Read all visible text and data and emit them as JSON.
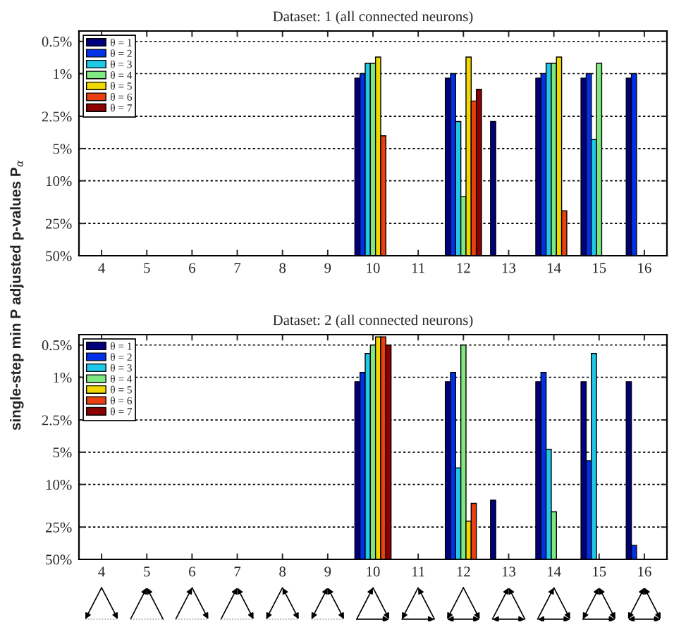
{
  "chart_data": [
    {
      "type": "bar",
      "title": "Dataset: 1 (all connected neurons)",
      "ylabel": "single-step min P adjusted p-values P$_{α}$",
      "categories": [
        "4",
        "5",
        "6",
        "7",
        "8",
        "9",
        "10",
        "11",
        "12",
        "13",
        "14",
        "15",
        "16"
      ],
      "series": [
        {
          "name": "θ = 1",
          "color": "#00007f",
          "values": [
            null,
            null,
            null,
            null,
            null,
            null,
            -48.9,
            null,
            -48.9,
            -47.2,
            -48.9,
            -48.9,
            -48.9
          ],
          "base": [
            null,
            null,
            null,
            null,
            null,
            null,
            50,
            null,
            50,
            50,
            50,
            50,
            50
          ]
        },
        {
          "name": "θ = 2",
          "color": "#0030e8",
          "values": [
            null,
            null,
            null,
            null,
            null,
            null,
            -49,
            null,
            -49,
            null,
            -49,
            -49,
            -49
          ],
          "base": [
            null,
            null,
            null,
            null,
            null,
            null,
            50,
            null,
            50,
            null,
            50,
            50,
            50
          ]
        },
        {
          "name": "θ = 3",
          "color": "#20c8e8",
          "values": [
            null,
            null,
            null,
            null,
            null,
            null,
            -49.2,
            null,
            -47.2,
            null,
            -49.2,
            -45.9,
            null
          ],
          "base": [
            null,
            null,
            null,
            null,
            null,
            null,
            50,
            null,
            50,
            null,
            50,
            50,
            null
          ]
        },
        {
          "name": "θ = 4",
          "color": "#80e880",
          "values": [
            null,
            null,
            null,
            null,
            null,
            null,
            -49.2,
            null,
            -36,
            null,
            -49.2,
            -49.2,
            null
          ],
          "base": [
            null,
            null,
            null,
            null,
            null,
            null,
            50,
            null,
            50,
            null,
            50,
            50,
            null
          ]
        },
        {
          "name": "θ = 5",
          "color": "#f0d800",
          "values": [
            null,
            null,
            null,
            null,
            null,
            null,
            -49.3,
            null,
            -49.3,
            null,
            -49.3,
            null,
            null
          ],
          "base": [
            null,
            null,
            null,
            null,
            null,
            null,
            50,
            null,
            50,
            null,
            50,
            null,
            null
          ]
        },
        {
          "name": "θ = 6",
          "color": "#e84010",
          "values": [
            null,
            null,
            null,
            null,
            null,
            null,
            -46.2,
            null,
            -48.2,
            null,
            -31,
            null,
            null
          ],
          "base": [
            null,
            null,
            null,
            null,
            null,
            null,
            50,
            null,
            50,
            null,
            50,
            null,
            null
          ]
        },
        {
          "name": "θ = 7",
          "color": "#8b0000",
          "values": [
            null,
            null,
            null,
            null,
            null,
            null,
            null,
            null,
            -48.6,
            null,
            null,
            null,
            null
          ],
          "base": [
            null,
            null,
            null,
            null,
            null,
            null,
            null,
            null,
            50,
            null,
            null,
            null,
            null
          ]
        }
      ],
      "log": "y",
      "ylim": [
        50,
        0.4
      ],
      "yticks": [
        {
          "value": 0.5,
          "label": "0.5%"
        },
        {
          "value": 1,
          "label": "1%"
        },
        {
          "value": 2.5,
          "label": "2.5%"
        },
        {
          "value": 5,
          "label": "5%"
        },
        {
          "value": 10,
          "label": "10%"
        },
        {
          "value": 25,
          "label": "25%"
        },
        {
          "value": 50,
          "label": "50%"
        }
      ],
      "grid": "y",
      "legend": "top left"
    },
    {
      "type": "bar",
      "title": "Dataset: 2 (all connected neurons)",
      "categories": [
        "4",
        "5",
        "6",
        "7",
        "8",
        "9",
        "10",
        "11",
        "12",
        "13",
        "14",
        "15",
        "16"
      ],
      "series": [
        {
          "name": "θ = 1",
          "color": "#00007f",
          "values": [
            null,
            null,
            null,
            null,
            null,
            null,
            -48.9,
            null,
            -48.9,
            -36,
            -48.9,
            -48.9,
            -48.9
          ],
          "base": [
            null,
            null,
            null,
            null,
            null,
            null,
            50,
            null,
            50,
            50,
            50,
            50,
            50
          ]
        },
        {
          "name": "θ = 2",
          "color": "#0030e8",
          "values": [
            null,
            null,
            null,
            null,
            null,
            null,
            -49.1,
            null,
            -49.1,
            null,
            -49.1,
            -44,
            -13
          ],
          "base": [
            null,
            null,
            null,
            null,
            null,
            null,
            50,
            null,
            50,
            null,
            50,
            50,
            50
          ]
        },
        {
          "name": "θ = 3",
          "color": "#20c8e8",
          "values": [
            null,
            null,
            null,
            null,
            null,
            null,
            -49.4,
            null,
            -43,
            null,
            -45.3,
            -49.4,
            null
          ],
          "base": [
            null,
            null,
            null,
            null,
            null,
            null,
            50,
            null,
            50,
            null,
            50,
            50,
            null
          ]
        },
        {
          "name": "θ = 4",
          "color": "#80e880",
          "values": [
            null,
            null,
            null,
            null,
            null,
            null,
            -49.5,
            null,
            -49.5,
            null,
            -32,
            null,
            null
          ],
          "base": [
            null,
            null,
            null,
            null,
            null,
            null,
            50,
            null,
            50,
            null,
            50,
            null,
            null
          ]
        },
        {
          "name": "θ = 5",
          "color": "#f0d800",
          "values": [
            null,
            null,
            null,
            null,
            null,
            null,
            -49.58,
            null,
            -28,
            null,
            null,
            null,
            null
          ],
          "base": [
            null,
            null,
            null,
            null,
            null,
            null,
            50,
            null,
            50,
            null,
            null,
            null,
            null
          ]
        },
        {
          "name": "θ = 6",
          "color": "#e84010",
          "values": [
            null,
            null,
            null,
            null,
            null,
            null,
            -49.58,
            null,
            -35,
            null,
            null,
            null,
            null
          ],
          "base": [
            null,
            null,
            null,
            null,
            null,
            null,
            50,
            null,
            50,
            null,
            null,
            null,
            null
          ]
        },
        {
          "name": "θ = 7",
          "color": "#8b0000",
          "values": [
            null,
            null,
            null,
            null,
            null,
            null,
            -49.5,
            null,
            null,
            null,
            null,
            null,
            null
          ],
          "base": [
            null,
            null,
            null,
            null,
            null,
            null,
            50,
            null,
            null,
            null,
            null,
            null,
            null
          ]
        }
      ],
      "log": "y",
      "ylim": [
        50,
        0.4
      ],
      "yticks": [
        {
          "value": 0.5,
          "label": "0.5%"
        },
        {
          "value": 1,
          "label": "1%"
        },
        {
          "value": 2.5,
          "label": "2.5%"
        },
        {
          "value": 5,
          "label": "5%"
        },
        {
          "value": 10,
          "label": "10%"
        },
        {
          "value": 25,
          "label": "25%"
        },
        {
          "value": 50,
          "label": "50%"
        }
      ],
      "grid": "y",
      "legend": "top left"
    }
  ]
}
